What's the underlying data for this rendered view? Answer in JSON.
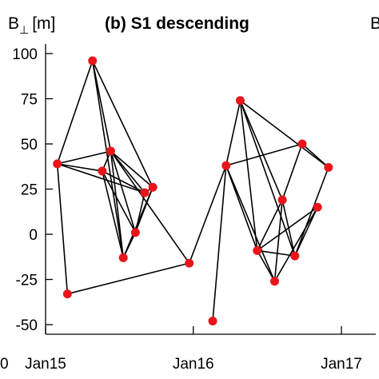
{
  "chart_data": {
    "type": "scatter",
    "title": "(b) S1 descending",
    "ylabel": "B",
    "ylabel_subscript": "⊥",
    "ylabel_unit": "[m]",
    "xlabel": "",
    "x_ticks": [
      "Jan15",
      "Jan16",
      "Jan17"
    ],
    "y_ticks": [
      100,
      75,
      50,
      25,
      0,
      -25,
      -50
    ],
    "ylim": [
      -55,
      105
    ],
    "xlim": [
      "2015-01-01",
      "2017-01-01"
    ],
    "grid": false,
    "left_partial_tick_label": "0",
    "right_partial_label": "B",
    "point_color": "#e8151b",
    "line_color": "#000000",
    "points": [
      {
        "id": "A",
        "x": "2015-01-30",
        "y": 39
      },
      {
        "id": "B",
        "x": "2015-02-24",
        "y": -33
      },
      {
        "id": "C",
        "x": "2015-04-27",
        "y": 96
      },
      {
        "id": "D",
        "x": "2015-05-21",
        "y": 35
      },
      {
        "id": "E",
        "x": "2015-06-11",
        "y": 46
      },
      {
        "id": "F",
        "x": "2015-07-12",
        "y": -13
      },
      {
        "id": "G",
        "x": "2015-08-11",
        "y": 1
      },
      {
        "id": "H",
        "x": "2015-09-03",
        "y": 23
      },
      {
        "id": "I",
        "x": "2015-09-23",
        "y": 26
      },
      {
        "id": "J",
        "x": "2015-12-22",
        "y": -16
      },
      {
        "id": "K",
        "x": "2016-02-18",
        "y": -48
      },
      {
        "id": "L",
        "x": "2016-03-22",
        "y": 38
      },
      {
        "id": "M",
        "x": "2016-04-26",
        "y": 74
      },
      {
        "id": "N",
        "x": "2016-06-07",
        "y": -9
      },
      {
        "id": "O",
        "x": "2016-07-20",
        "y": -26
      },
      {
        "id": "P",
        "x": "2016-08-08",
        "y": 19
      },
      {
        "id": "Q",
        "x": "2016-09-08",
        "y": -12
      },
      {
        "id": "R",
        "x": "2016-09-26",
        "y": 50
      },
      {
        "id": "S",
        "x": "2016-11-03",
        "y": 15
      },
      {
        "id": "T",
        "x": "2016-11-30",
        "y": 37
      }
    ],
    "connections": [
      [
        "A",
        "B"
      ],
      [
        "A",
        "C"
      ],
      [
        "A",
        "D"
      ],
      [
        "A",
        "E"
      ],
      [
        "A",
        "H"
      ],
      [
        "B",
        "J"
      ],
      [
        "C",
        "E"
      ],
      [
        "C",
        "F"
      ],
      [
        "C",
        "I"
      ],
      [
        "D",
        "F"
      ],
      [
        "D",
        "G"
      ],
      [
        "D",
        "H"
      ],
      [
        "E",
        "D"
      ],
      [
        "E",
        "F"
      ],
      [
        "E",
        "G"
      ],
      [
        "E",
        "H"
      ],
      [
        "E",
        "I"
      ],
      [
        "E",
        "J"
      ],
      [
        "F",
        "G"
      ],
      [
        "F",
        "I"
      ],
      [
        "G",
        "H"
      ],
      [
        "G",
        "I"
      ],
      [
        "H",
        "I"
      ],
      [
        "J",
        "L"
      ],
      [
        "K",
        "L"
      ],
      [
        "L",
        "M"
      ],
      [
        "L",
        "N"
      ],
      [
        "L",
        "R"
      ],
      [
        "L",
        "O"
      ],
      [
        "M",
        "N"
      ],
      [
        "M",
        "P"
      ],
      [
        "M",
        "Q"
      ],
      [
        "M",
        "T"
      ],
      [
        "N",
        "O"
      ],
      [
        "N",
        "P"
      ],
      [
        "N",
        "Q"
      ],
      [
        "N",
        "S"
      ],
      [
        "O",
        "P"
      ],
      [
        "O",
        "S"
      ],
      [
        "P",
        "Q"
      ],
      [
        "P",
        "R"
      ],
      [
        "Q",
        "S"
      ],
      [
        "Q",
        "T"
      ],
      [
        "R",
        "T"
      ]
    ]
  }
}
